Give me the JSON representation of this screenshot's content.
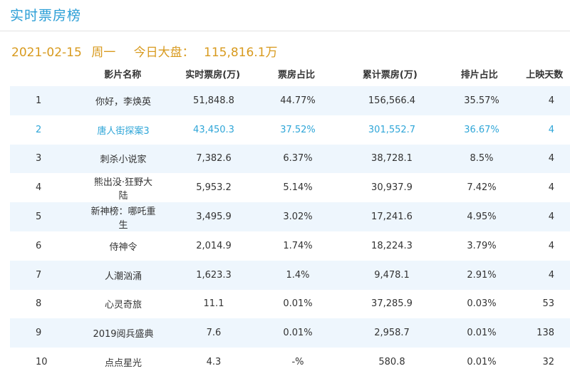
{
  "header": {
    "title": "实时票房榜",
    "date": "2021-02-15",
    "weekday": "周一",
    "total_label": "今日大盘：",
    "total_value": "115,816.1万"
  },
  "columns": [
    "",
    "影片名称",
    "实时票房(万)",
    "票房占比",
    "累计票房(万)",
    "排片占比",
    "上映天数"
  ],
  "rows": [
    {
      "rank": "1",
      "name": "你好，李焕英",
      "realtime": "51,848.8",
      "share": "44.77%",
      "cumulative": "156,566.4",
      "screen": "35.57%",
      "days": "4"
    },
    {
      "rank": "2",
      "name": "唐人街探案3",
      "realtime": "43,450.3",
      "share": "37.52%",
      "cumulative": "301,552.7",
      "screen": "36.67%",
      "days": "4"
    },
    {
      "rank": "3",
      "name": "刺杀小说家",
      "realtime": "7,382.6",
      "share": "6.37%",
      "cumulative": "38,728.1",
      "screen": "8.5%",
      "days": "4"
    },
    {
      "rank": "4",
      "name": "熊出没·狂野大陆",
      "realtime": "5,953.2",
      "share": "5.14%",
      "cumulative": "30,937.9",
      "screen": "7.42%",
      "days": "4"
    },
    {
      "rank": "5",
      "name": "新神榜：哪吒重生",
      "realtime": "3,495.9",
      "share": "3.02%",
      "cumulative": "17,241.6",
      "screen": "4.95%",
      "days": "4"
    },
    {
      "rank": "6",
      "name": "侍神令",
      "realtime": "2,014.9",
      "share": "1.74%",
      "cumulative": "18,224.3",
      "screen": "3.79%",
      "days": "4"
    },
    {
      "rank": "7",
      "name": "人潮汹涌",
      "realtime": "1,623.3",
      "share": "1.4%",
      "cumulative": "9,478.1",
      "screen": "2.91%",
      "days": "4"
    },
    {
      "rank": "8",
      "name": "心灵奇旅",
      "realtime": "11.1",
      "share": "0.01%",
      "cumulative": "37,285.9",
      "screen": "0.03%",
      "days": "53"
    },
    {
      "rank": "9",
      "name": "2019阅兵盛典",
      "realtime": "7.6",
      "share": "0.01%",
      "cumulative": "2,958.7",
      "screen": "0.01%",
      "days": "138"
    },
    {
      "rank": "10",
      "name": "点点星光",
      "realtime": "4.3",
      "share": "-%",
      "cumulative": "580.8",
      "screen": "0.01%",
      "days": "32"
    }
  ],
  "colors": {
    "title": "#2a9ed6",
    "summary": "#d89a1e",
    "highlight": "#2fa6d8",
    "alt_row": "#eef6fd"
  }
}
